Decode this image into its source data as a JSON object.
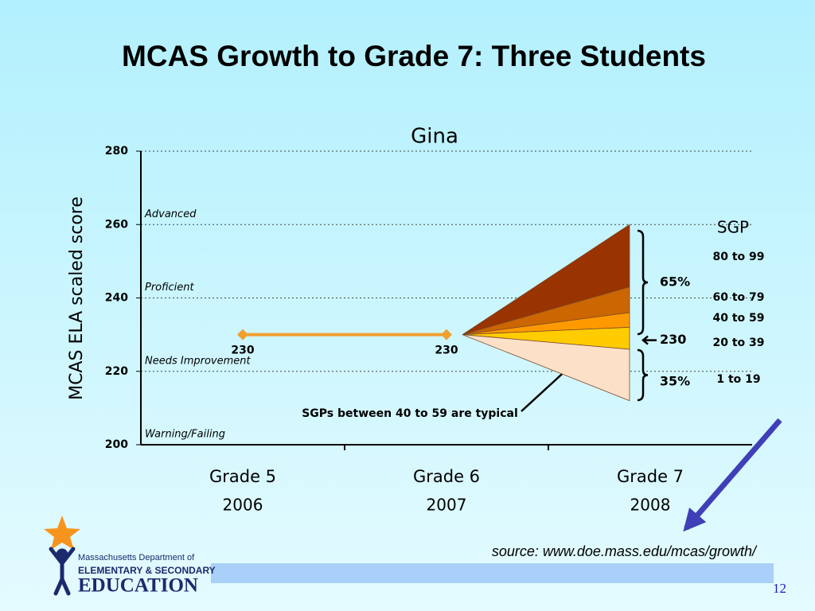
{
  "slide": {
    "title": "MCAS Growth to Grade 7: Three Students",
    "source": "source: www.doe.mass.edu/mcas/growth/",
    "page": "12",
    "logo": [
      "Massachusetts Department of",
      "ELEMENTARY & SECONDARY",
      "EDUCATION"
    ]
  },
  "chart_data": {
    "type": "line",
    "title": "Gina",
    "ylabel": "MCAS ELA scaled score",
    "categories": [
      "Grade 5",
      "Grade 6",
      "Grade 7"
    ],
    "category_years": [
      "2006",
      "2007",
      "2008"
    ],
    "series": [
      {
        "color": "#f0a030",
        "values": [
          230,
          230,
          null
        ]
      }
    ],
    "ylim": [
      200,
      280
    ],
    "yticks": [
      200,
      220,
      240,
      260,
      280
    ],
    "grid": true,
    "levels": [
      {
        "label": "Advanced",
        "value": 260
      },
      {
        "label": "Proficient",
        "value": 240
      },
      {
        "label": "Needs Improvement",
        "value": 220
      },
      {
        "label": "Warning/Failing",
        "value": 200
      }
    ],
    "sgp_fan": {
      "title": "SGP",
      "start": 230,
      "bounds": [
        260,
        243,
        236,
        232,
        226,
        212
      ],
      "labels": [
        "80 to 99",
        "60 to 79",
        "40 to 59",
        "20 to 39",
        "1 to 19"
      ],
      "colors": [
        "#993300",
        "#cc6600",
        "#ff9900",
        "#ffcc00",
        "#fde0c8"
      ]
    },
    "shares": {
      "values": [
        65,
        35
      ],
      "value_labels": [
        "65%",
        "35%"
      ]
    },
    "pointer": {
      "value": 230
    },
    "annotation": "SGPs between 40 to 59 are typical"
  }
}
